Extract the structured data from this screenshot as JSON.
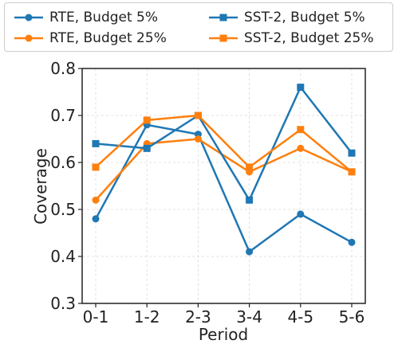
{
  "chart_data": {
    "type": "line",
    "xlabel": "Period",
    "ylabel": "Coverage",
    "categories": [
      "0-1",
      "1-2",
      "2-3",
      "3-4",
      "4-5",
      "5-6"
    ],
    "ylim": [
      0.3,
      0.8
    ],
    "yticks": [
      "0.3",
      "0.4",
      "0.5",
      "0.6",
      "0.7",
      "0.8"
    ],
    "grid": true,
    "legend_position": "top",
    "series": [
      {
        "name": "RTE, Budget 5%",
        "marker": "circle",
        "color": "#1f77b4",
        "values": [
          0.48,
          0.68,
          0.66,
          0.41,
          0.49,
          0.43
        ]
      },
      {
        "name": "RTE, Budget 25%",
        "marker": "circle",
        "color": "#ff7f0e",
        "values": [
          0.52,
          0.64,
          0.65,
          0.58,
          0.63,
          0.58
        ]
      },
      {
        "name": "SST-2, Budget 5%",
        "marker": "square",
        "color": "#1f77b4",
        "values": [
          0.64,
          0.63,
          0.7,
          0.52,
          0.76,
          0.62
        ]
      },
      {
        "name": "SST-2, Budget 25%",
        "marker": "square",
        "color": "#ff7f0e",
        "values": [
          0.59,
          0.69,
          0.7,
          0.59,
          0.67,
          0.58
        ]
      }
    ]
  }
}
